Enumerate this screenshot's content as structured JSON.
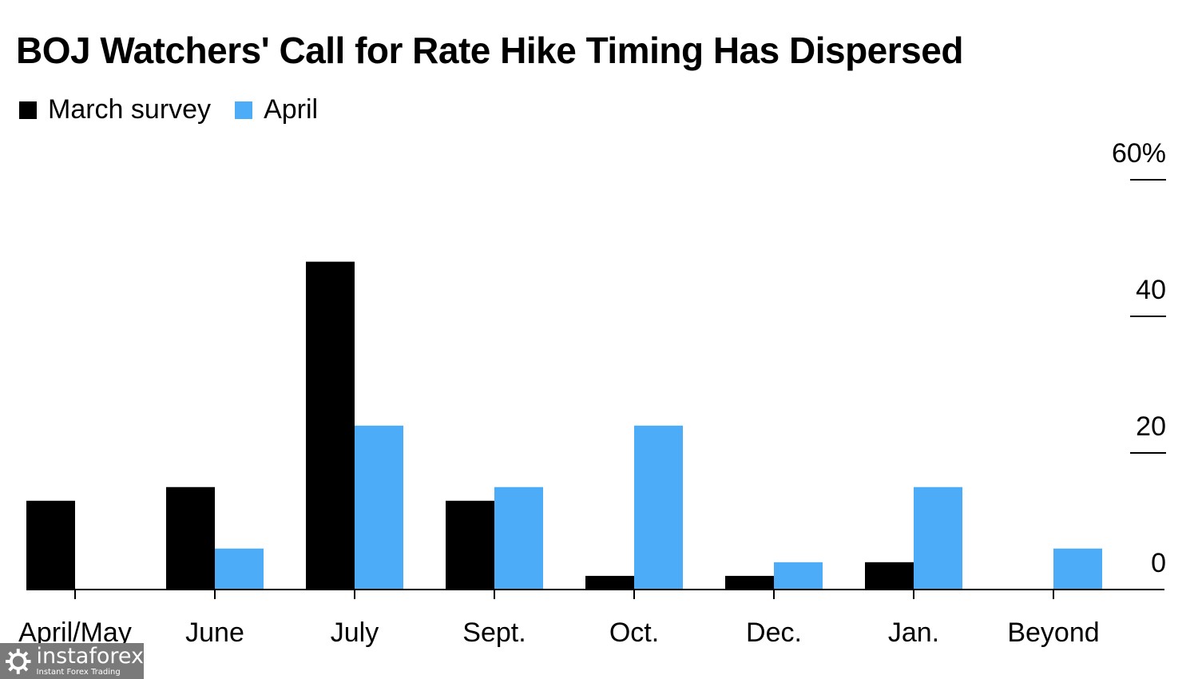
{
  "colors": {
    "march": "#000000",
    "april": "#4dacf7",
    "axis": "#000000"
  },
  "chart_data": {
    "type": "bar",
    "title": "BOJ Watchers' Call for Rate Hike Timing Has Dispersed",
    "categories": [
      "April/May",
      "June",
      "July",
      "Sept.",
      "Oct.",
      "Dec.",
      "Jan.",
      "Beyond"
    ],
    "series": [
      {
        "name": "March survey",
        "values": [
          13,
          15,
          48,
          13,
          2,
          2,
          4,
          0
        ]
      },
      {
        "name": "April",
        "values": [
          0,
          6,
          24,
          15,
          24,
          4,
          15,
          6
        ]
      }
    ],
    "yticks": [
      "0",
      "20",
      "40",
      "60%"
    ],
    "ytick_values": [
      0,
      20,
      40,
      60
    ],
    "ylim": [
      0,
      60
    ],
    "yaxis_position": "right",
    "grid": false,
    "legend_position": "top-left"
  },
  "watermark": {
    "brand": "instaforex",
    "tagline": "Instant Forex Trading"
  }
}
